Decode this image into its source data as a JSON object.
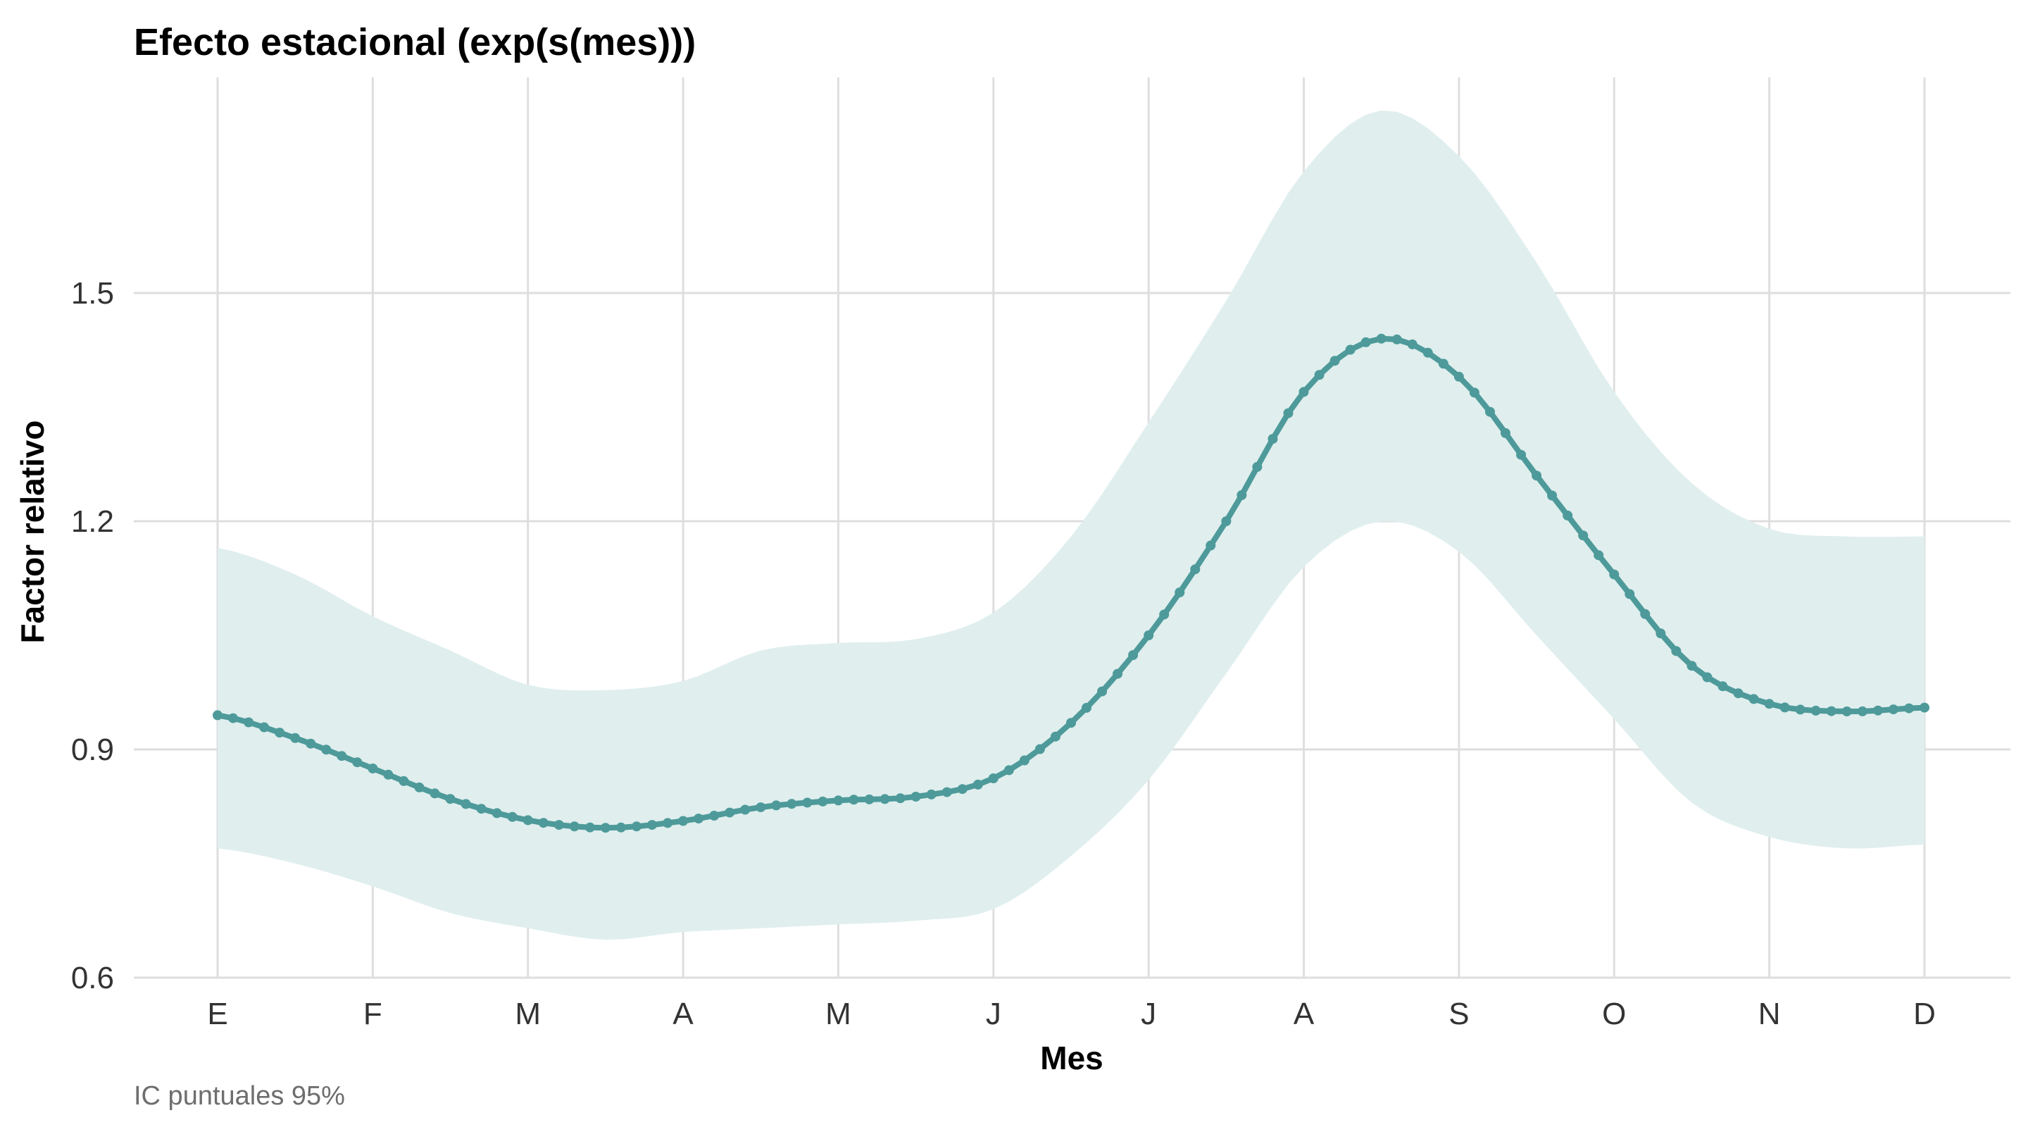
{
  "chart_data": {
    "type": "line",
    "title": "Efecto estacional (exp(s(mes)))",
    "xlabel": "Mes",
    "ylabel": "Factor relativo",
    "caption": "IC puntuales 95%",
    "categories": [
      "E",
      "F",
      "M",
      "A",
      "M",
      "J",
      "J",
      "A",
      "S",
      "O",
      "N",
      "D"
    ],
    "ylim": [
      0.6,
      1.8
    ],
    "yticks": [
      0.6,
      0.9,
      1.2,
      1.5
    ],
    "grid": true,
    "legend": "none",
    "colors": {
      "line": "#4e9a9a",
      "band": "#e0eeee",
      "grid": "#dedede"
    },
    "series": [
      {
        "x": [
          1,
          1.5,
          2,
          2.5,
          3,
          3.5,
          4,
          4.5,
          5,
          5.5,
          6,
          6.5,
          7,
          7.5,
          8,
          8.5,
          9,
          9.5,
          10,
          10.5,
          11,
          11.5,
          12
        ],
        "fit": [
          0.945,
          0.915,
          0.875,
          0.835,
          0.807,
          0.797,
          0.806,
          0.824,
          0.833,
          0.838,
          0.862,
          0.935,
          1.05,
          1.2,
          1.37,
          1.44,
          1.39,
          1.26,
          1.13,
          1.01,
          0.96,
          0.95,
          0.955
        ],
        "lower": [
          0.77,
          0.75,
          0.72,
          0.685,
          0.665,
          0.65,
          0.66,
          0.665,
          0.67,
          0.675,
          0.69,
          0.76,
          0.86,
          1.0,
          1.14,
          1.2,
          1.16,
          1.05,
          0.94,
          0.83,
          0.785,
          0.77,
          0.775
        ],
        "upper": [
          1.165,
          1.13,
          1.075,
          1.03,
          0.985,
          0.978,
          0.99,
          1.03,
          1.04,
          1.045,
          1.08,
          1.18,
          1.33,
          1.49,
          1.66,
          1.74,
          1.68,
          1.54,
          1.37,
          1.25,
          1.19,
          1.18,
          1.18
        ]
      }
    ]
  }
}
